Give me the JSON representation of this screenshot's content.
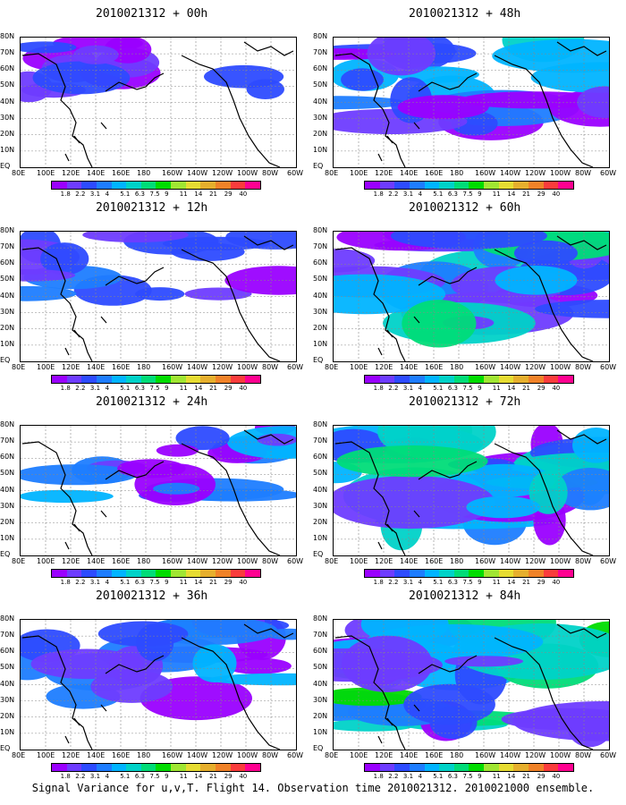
{
  "panels": [
    {
      "title": "2010021312 + 00h"
    },
    {
      "title": "2010021312 + 48h"
    },
    {
      "title": "2010021312 + 12h"
    },
    {
      "title": "2010021312 + 60h"
    },
    {
      "title": "2010021312 + 24h"
    },
    {
      "title": "2010021312 + 72h"
    },
    {
      "title": "2010021312 + 36h"
    },
    {
      "title": "2010021312 + 84h"
    }
  ],
  "lat_labels": [
    "80N",
    "70N",
    "60N",
    "50N",
    "40N",
    "30N",
    "20N",
    "10N",
    "EQ"
  ],
  "lon_labels": [
    "80E",
    "100E",
    "120E",
    "140E",
    "160E",
    "180",
    "160W",
    "140W",
    "120W",
    "100W",
    "80W",
    "60W"
  ],
  "colorbar": {
    "ticks": [
      "1.8",
      "2.2",
      "3.1",
      "4",
      "5.1",
      "6.3",
      "7.5",
      "9",
      "11",
      "14",
      "21",
      "29",
      "40"
    ],
    "colors": [
      "#9a00ff",
      "#6e3cff",
      "#2d4bff",
      "#1e7dff",
      "#00b4ff",
      "#00d2c8",
      "#00dc78",
      "#00dc00",
      "#a0e632",
      "#e6dc32",
      "#e6af2d",
      "#f08228",
      "#fa3c3c",
      "#ff0090"
    ]
  },
  "footer": "Signal Variance for u,v,T. Flight 14. Observation time 2010021312. 2010021000 ensemble."
}
